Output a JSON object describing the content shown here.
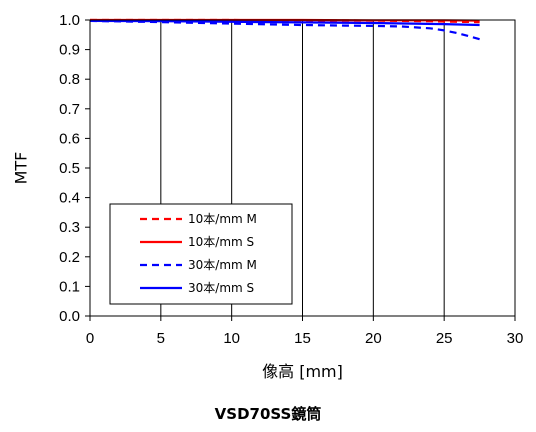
{
  "chart_data": {
    "type": "line",
    "title": "",
    "caption": "VSD70SS鏡筒",
    "xlabel": "像高 [mm]",
    "ylabel": "MTF",
    "xlim": [
      0,
      30
    ],
    "ylim": [
      0.0,
      1.0
    ],
    "x_ticks": [
      "0",
      "5",
      "10",
      "15",
      "20",
      "25",
      "30"
    ],
    "y_ticks": [
      "0.0",
      "0.1",
      "0.2",
      "0.3",
      "0.4",
      "0.5",
      "0.6",
      "0.7",
      "0.8",
      "0.9",
      "1.0"
    ],
    "grid": "vertical",
    "legend_position": "lower-left",
    "series": [
      {
        "name": "10本/mm M",
        "color": "#ff0000",
        "dashed": true,
        "x": [
          0,
          5,
          10,
          15,
          20,
          24,
          26,
          27.5
        ],
        "y": [
          1.0,
          1.0,
          1.0,
          0.999,
          0.998,
          0.996,
          0.994,
          0.993
        ]
      },
      {
        "name": "10本/mm S",
        "color": "#ff0000",
        "dashed": false,
        "x": [
          0,
          5,
          10,
          15,
          20,
          25,
          27.5
        ],
        "y": [
          1.0,
          1.0,
          1.0,
          1.0,
          0.999,
          0.999,
          0.998
        ]
      },
      {
        "name": "30本/mm M",
        "color": "#0000ff",
        "dashed": true,
        "x": [
          0,
          5,
          10,
          15,
          18,
          20,
          22,
          24,
          25,
          26,
          27,
          27.5
        ],
        "y": [
          0.997,
          0.993,
          0.988,
          0.983,
          0.981,
          0.98,
          0.978,
          0.972,
          0.965,
          0.955,
          0.942,
          0.935
        ]
      },
      {
        "name": "30本/mm S",
        "color": "#0000ff",
        "dashed": false,
        "x": [
          0,
          5,
          10,
          15,
          20,
          25,
          27.5
        ],
        "y": [
          0.997,
          0.996,
          0.994,
          0.992,
          0.99,
          0.986,
          0.983
        ]
      }
    ]
  }
}
